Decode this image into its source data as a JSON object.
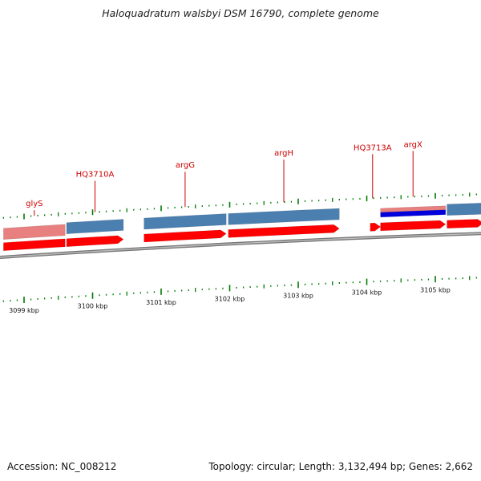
{
  "title": "Haloquadratum walsbyi DSM 16790, complete genome",
  "footer": {
    "accession": "Accession: NC_008212",
    "summary": "Topology: circular; Length: 3,132,494 bp; Genes: 2,662"
  },
  "colors": {
    "backbone": "#888888",
    "forward_cds": "#ff0000",
    "reverse_cds": "#e88080",
    "gene_forward": "#4a7fb0",
    "rna": "#0000dd",
    "tick": "#007a00",
    "label": "#cc0000"
  },
  "genes": [
    {
      "name": "glyS",
      "start_kbp": 3098.7,
      "end_kbp": 3099.6,
      "strand": "-"
    },
    {
      "name": "HQ3710A",
      "start_kbp": 3099.62,
      "end_kbp": 3100.45,
      "strand": "+"
    },
    {
      "name": "argG",
      "start_kbp": 3100.75,
      "end_kbp": 3101.95,
      "strand": "+"
    },
    {
      "name": "argH",
      "start_kbp": 3101.98,
      "end_kbp": 3103.6,
      "strand": "+"
    },
    {
      "name": "HQ3713A",
      "start_kbp": 3104.05,
      "end_kbp": 3104.2,
      "strand": "+"
    },
    {
      "name": "argX",
      "start_kbp": 3104.2,
      "end_kbp": 3105.15,
      "strand": "+"
    },
    {
      "name": "",
      "start_kbp": 3105.17,
      "end_kbp": 3105.7,
      "strand": "+"
    }
  ],
  "kbp_ticks": [
    "3099 kbp",
    "3100 kbp",
    "3101 kbp",
    "3102 kbp",
    "3103 kbp",
    "3104 kbp",
    "3105 kbp"
  ]
}
